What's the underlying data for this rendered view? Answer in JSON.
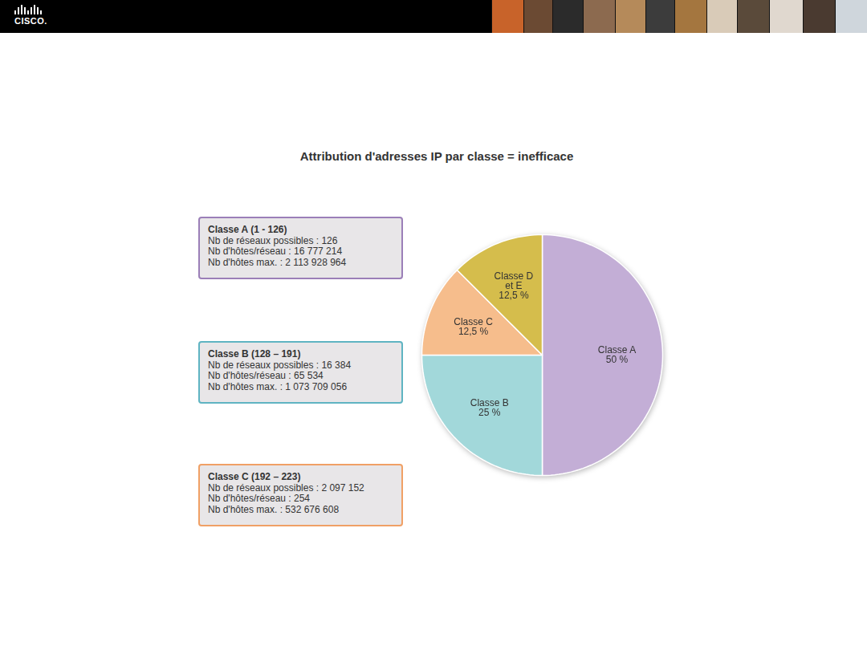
{
  "header": {
    "logo": "CISCO."
  },
  "chart_data": {
    "type": "pie",
    "title": "Attribution d'adresses IP par classe = inefficace",
    "categories": [
      "Classe A",
      "Classe B",
      "Classe C",
      "Classe D et E"
    ],
    "values": [
      50,
      25,
      12.5,
      12.5
    ],
    "value_labels": [
      "50 %",
      "25 %",
      "12,5 %",
      "12,5 %"
    ],
    "colors": [
      "#c3aed6",
      "#a2d8da",
      "#f6bd8c",
      "#d5bd4c"
    ],
    "data_labels": true,
    "annotations": [
      {
        "title": "Classe A (1 - 126)",
        "color": "#9b7fb8",
        "lines": [
          "Nb de réseaux possibles : 126",
          "Nb d'hôtes/réseau : 16 777 214",
          "Nb d'hôtes max. : 2 113 928 964"
        ]
      },
      {
        "title": "Classe B (128 – 191)",
        "color": "#5fb4c2",
        "lines": [
          "Nb de réseaux possibles : 16 384",
          "Nb d'hôtes/réseau : 65 534",
          "Nb d'hôtes max. : 1 073 709 056"
        ]
      },
      {
        "title": "Classe C (192 – 223)",
        "color": "#f0a065",
        "lines": [
          "Nb de réseaux possibles : 2 097 152",
          "Nb d'hôtes/réseau : 254",
          "Nb d'hôtes max. : 532 676 608"
        ]
      }
    ]
  }
}
